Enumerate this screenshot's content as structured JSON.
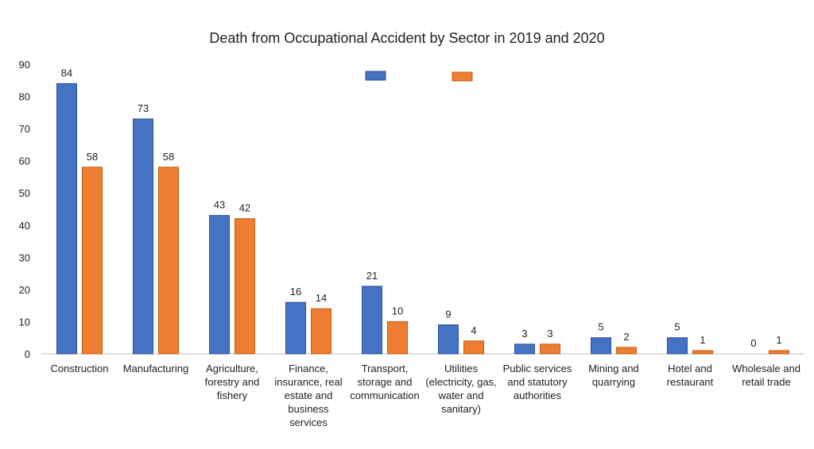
{
  "chart_data": {
    "type": "bar",
    "title": "Death from Occupational Accident by Sector in 2019 and 2020",
    "categories": [
      "Construction",
      "Manufacturing",
      "Agriculture, forestry and fishery",
      "Finance, insurance, real estate and business services",
      "Transport, storage and communication",
      "Utilities (electricity, gas, water and sanitary)",
      "Public services and statutory authorities",
      "Mining and quarrying",
      "Hotel and restaurant",
      "Wholesale and retail trade"
    ],
    "category_lines": [
      [
        "Construction"
      ],
      [
        "Manufacturing"
      ],
      [
        "Agriculture,",
        "forestry and",
        "fishery"
      ],
      [
        "Finance,",
        "insurance, real",
        "estate and",
        "business",
        "services"
      ],
      [
        "Transport,",
        "storage and",
        "communication"
      ],
      [
        "Utilities",
        "(electricity, gas,",
        "water and",
        "sanitary)"
      ],
      [
        "Public services",
        "and statutory",
        "authorities"
      ],
      [
        "Mining and",
        "quarrying"
      ],
      [
        "Hotel and",
        "restaurant"
      ],
      [
        "Wholesale and",
        "retail trade"
      ]
    ],
    "series": [
      {
        "values": [
          84,
          73,
          43,
          16,
          21,
          9,
          3,
          5,
          5,
          0
        ],
        "color": "#4472C4"
      },
      {
        "values": [
          58,
          58,
          42,
          14,
          10,
          4,
          3,
          2,
          1,
          1
        ],
        "color": "#ED7D31"
      }
    ],
    "ylim": [
      0,
      90
    ],
    "yticks": [
      0,
      10,
      20,
      30,
      40,
      50,
      60,
      70,
      80,
      90
    ],
    "grid": false,
    "legend": "top-center",
    "xlabel": "",
    "ylabel": ""
  }
}
